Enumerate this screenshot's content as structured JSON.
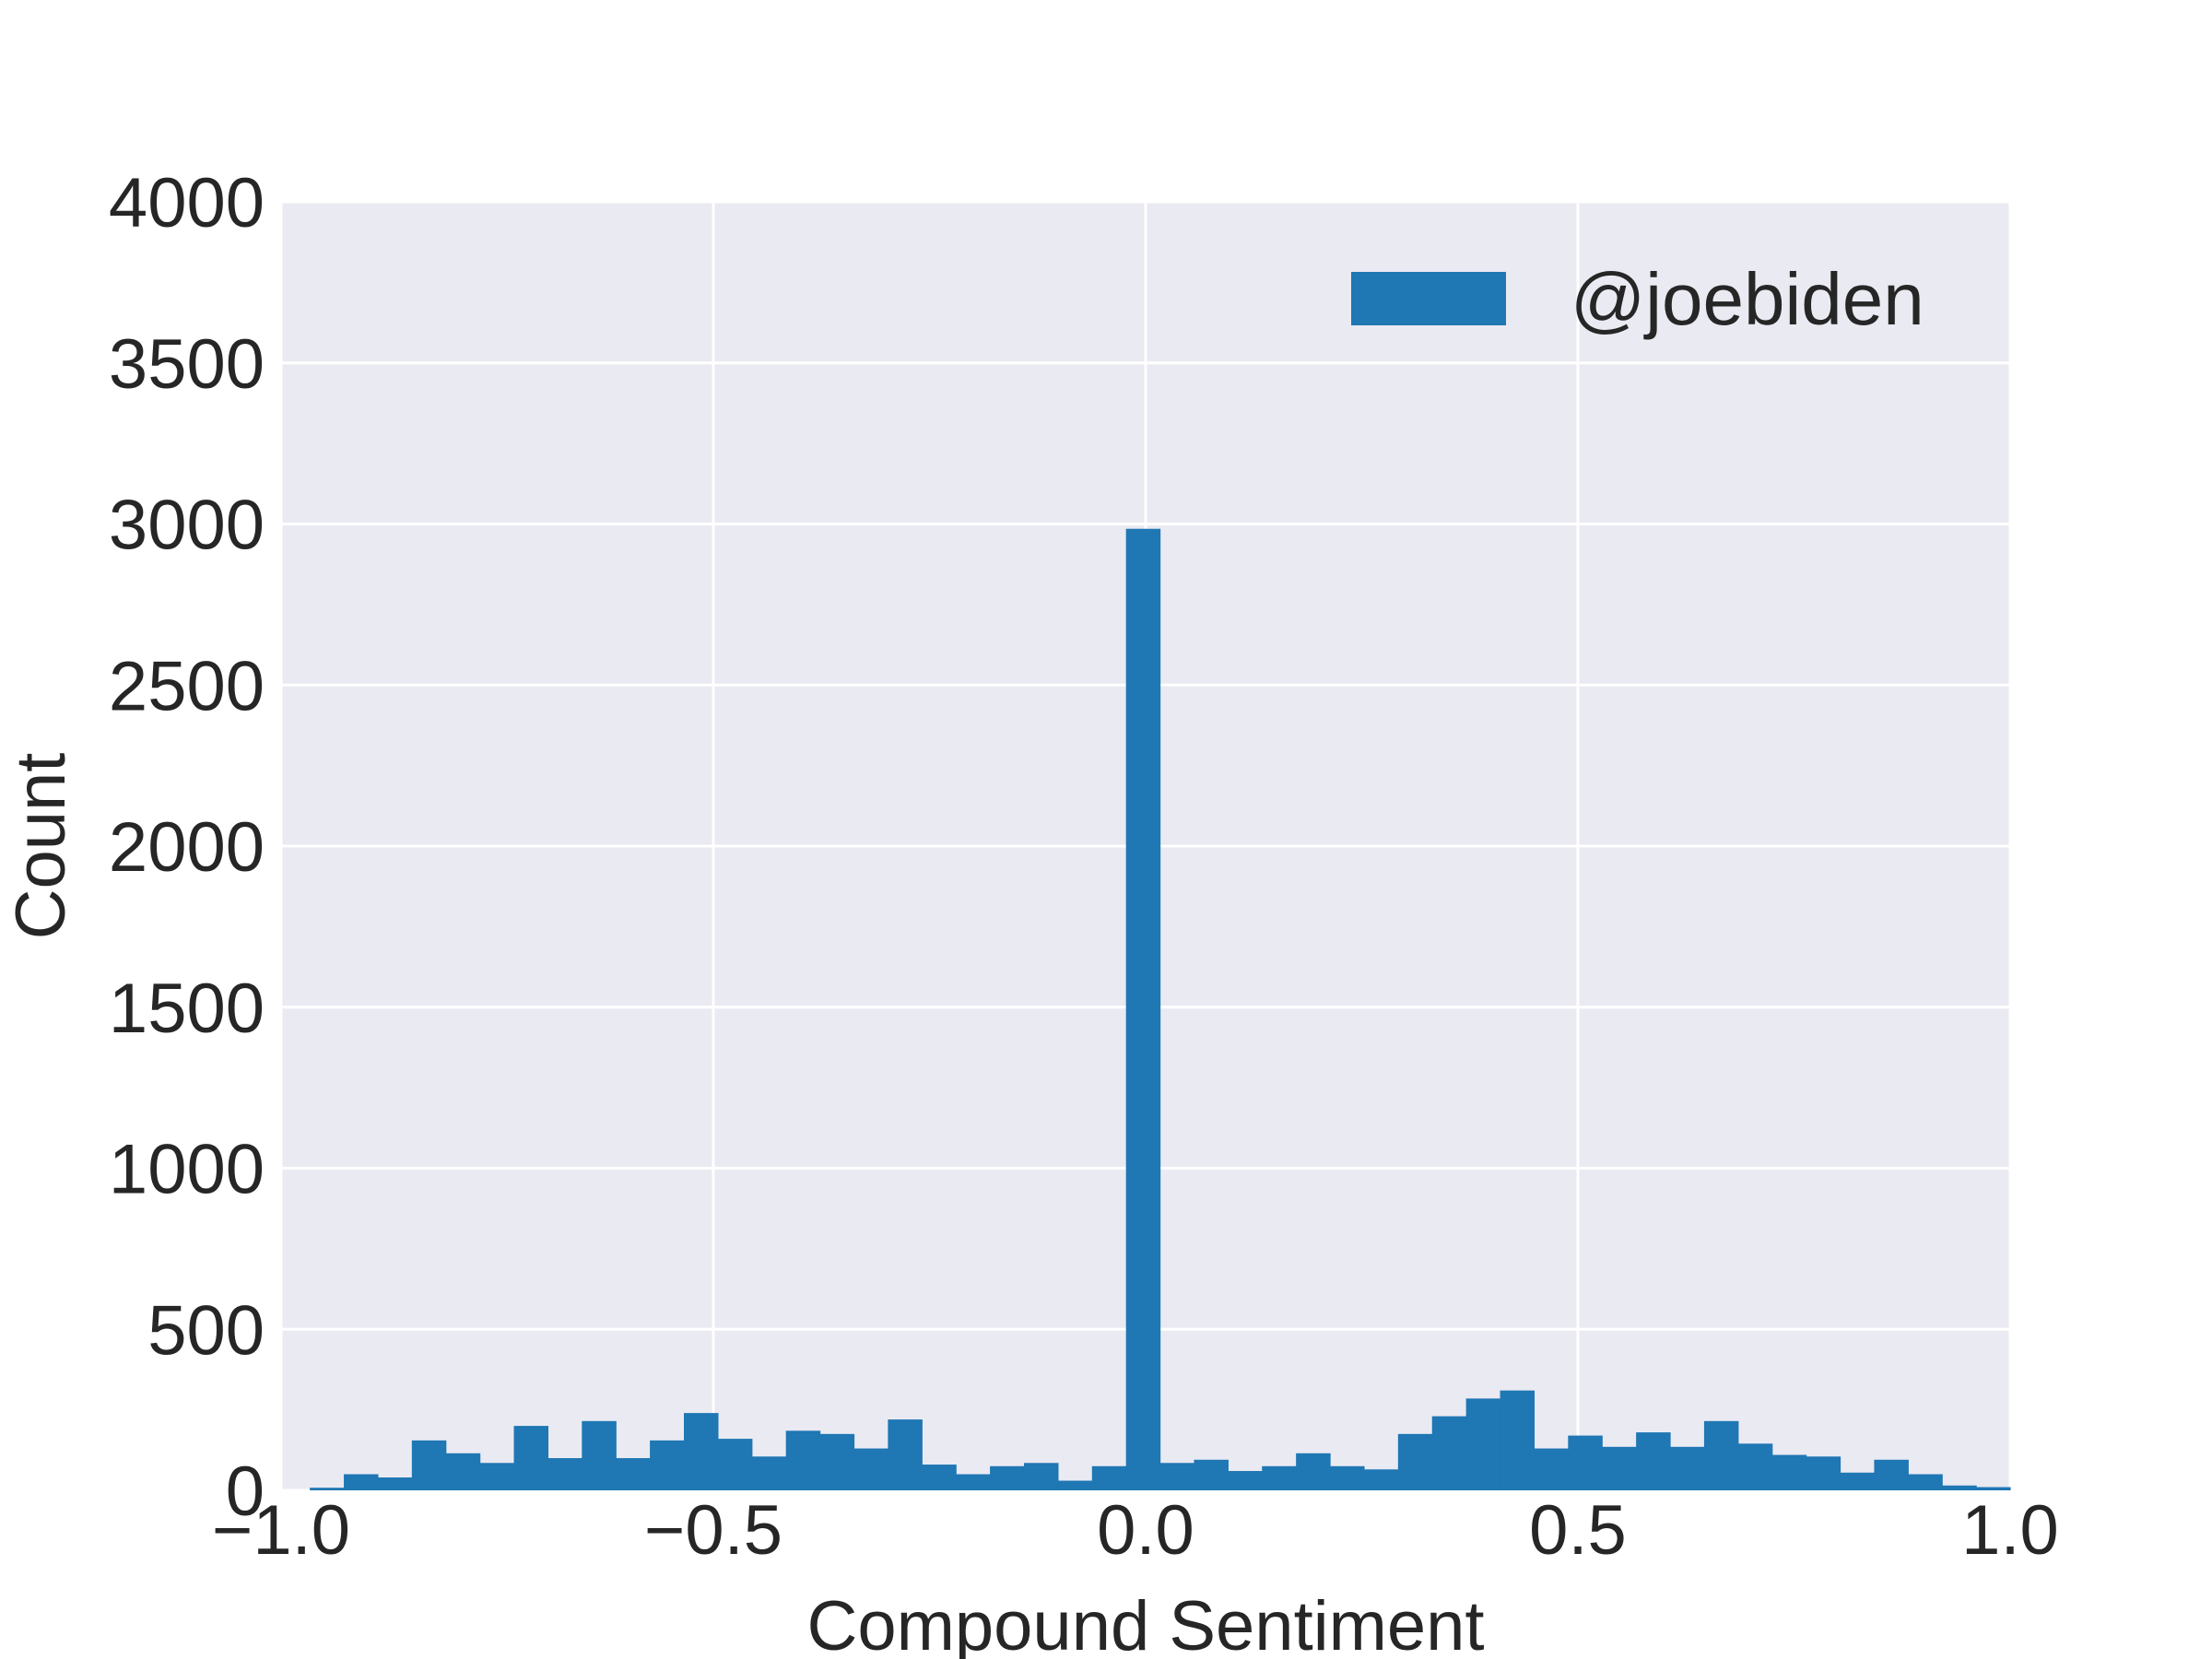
{
  "chart_data": {
    "type": "bar",
    "histogram": true,
    "xlabel": "Compound Sentiment",
    "ylabel": "Count",
    "xlim": [
      -1.0,
      1.0
    ],
    "ylim": [
      0,
      4000
    ],
    "xticks": [
      -1.0,
      -0.5,
      0.0,
      0.5,
      1.0
    ],
    "xtick_labels": [
      "−1.0",
      "−0.5",
      "0.0",
      "0.5",
      "1.0"
    ],
    "yticks": [
      0,
      500,
      1000,
      1500,
      2000,
      2500,
      3000,
      3500,
      4000
    ],
    "ytick_labels": [
      "0",
      "500",
      "1000",
      "1500",
      "2000",
      "2500",
      "3000",
      "3500",
      "4000"
    ],
    "grid": true,
    "legend_position": "top-right",
    "bin_edges_range": [
      -0.9668,
      1.0
    ],
    "bin_count": 50,
    "series": [
      {
        "name": "@joebiden",
        "color": "#1f77b4",
        "values": [
          8,
          50,
          40,
          155,
          115,
          85,
          200,
          100,
          215,
          100,
          155,
          240,
          160,
          105,
          185,
          175,
          130,
          220,
          80,
          50,
          75,
          85,
          30,
          75,
          2985,
          85,
          95,
          60,
          75,
          115,
          75,
          65,
          175,
          230,
          285,
          310,
          130,
          170,
          135,
          180,
          135,
          215,
          145,
          110,
          105,
          55,
          95,
          50,
          15,
          10
        ]
      }
    ]
  }
}
